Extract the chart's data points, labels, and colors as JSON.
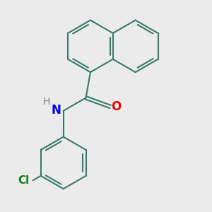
{
  "bg_color": "#ebebeb",
  "bond_color": "#3a7a6a",
  "N_color": "#0000ee",
  "O_color": "#ee0000",
  "Cl_color": "#008800",
  "H_color": "#808080",
  "line_width": 1.5,
  "font_size": 11,
  "figsize": [
    3.0,
    3.0
  ],
  "dpi": 100,
  "xlim": [
    -3.5,
    3.5
  ],
  "ylim": [
    -4.5,
    3.5
  ]
}
